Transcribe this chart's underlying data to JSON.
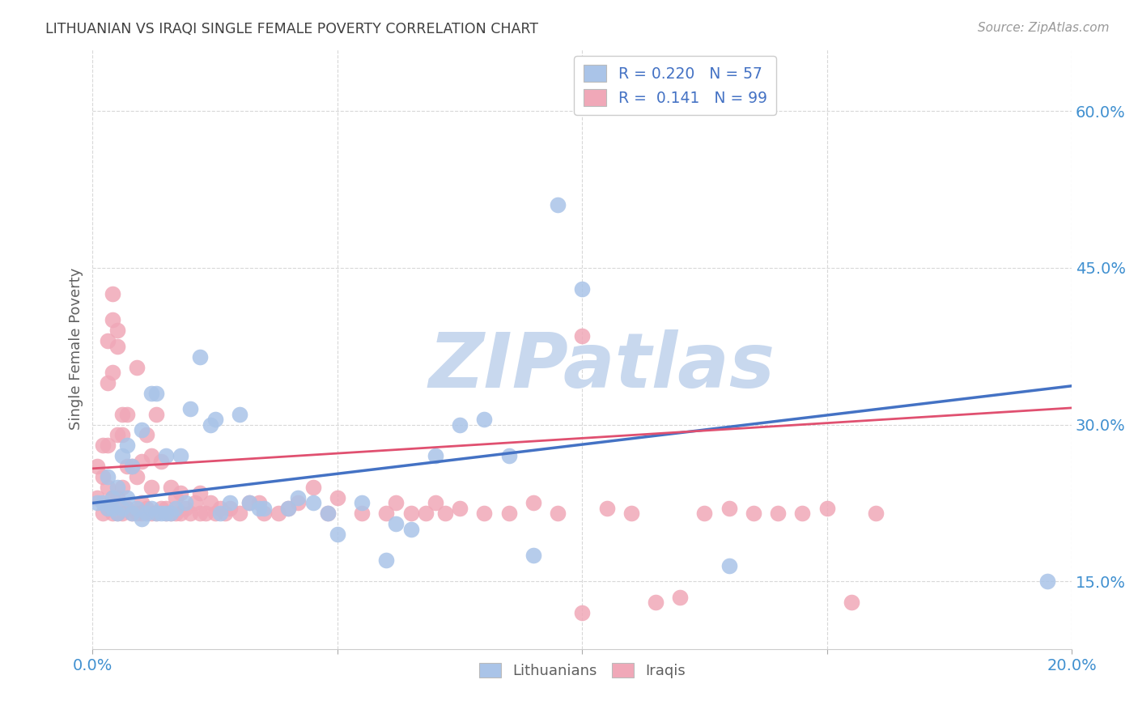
{
  "title": "LITHUANIAN VS IRAQI SINGLE FEMALE POVERTY CORRELATION CHART",
  "source": "Source: ZipAtlas.com",
  "ylabel": "Single Female Poverty",
  "watermark": "ZIPatlas",
  "legend_line1": "R = 0.220   N = 57",
  "legend_line2": "R =  0.141   N = 99",
  "xmin": 0.0,
  "xmax": 0.2,
  "ymin": 0.085,
  "ymax": 0.66,
  "yticks": [
    0.15,
    0.3,
    0.45,
    0.6
  ],
  "ytick_labels": [
    "15.0%",
    "30.0%",
    "45.0%",
    "60.0%"
  ],
  "xticks": [
    0.0,
    0.05,
    0.1,
    0.15,
    0.2
  ],
  "xtick_labels": [
    "0.0%",
    "",
    "",
    "",
    "20.0%"
  ],
  "blue_color": "#4472c4",
  "pink_color": "#e05070",
  "blue_scatter_color": "#aac4e8",
  "pink_scatter_color": "#f0a8b8",
  "background_color": "#ffffff",
  "grid_color": "#d8d8d8",
  "title_color": "#404040",
  "axis_label_color": "#606060",
  "tick_color": "#4090d0",
  "watermark_color": "#c8d8ee",
  "blue_pts": [
    [
      0.001,
      0.225
    ],
    [
      0.002,
      0.225
    ],
    [
      0.003,
      0.22
    ],
    [
      0.003,
      0.25
    ],
    [
      0.004,
      0.22
    ],
    [
      0.004,
      0.23
    ],
    [
      0.005,
      0.215
    ],
    [
      0.005,
      0.24
    ],
    [
      0.006,
      0.22
    ],
    [
      0.006,
      0.27
    ],
    [
      0.007,
      0.23
    ],
    [
      0.007,
      0.28
    ],
    [
      0.008,
      0.215
    ],
    [
      0.008,
      0.26
    ],
    [
      0.009,
      0.22
    ],
    [
      0.01,
      0.21
    ],
    [
      0.01,
      0.295
    ],
    [
      0.011,
      0.215
    ],
    [
      0.012,
      0.22
    ],
    [
      0.012,
      0.33
    ],
    [
      0.013,
      0.215
    ],
    [
      0.013,
      0.33
    ],
    [
      0.014,
      0.215
    ],
    [
      0.015,
      0.215
    ],
    [
      0.015,
      0.27
    ],
    [
      0.016,
      0.215
    ],
    [
      0.017,
      0.22
    ],
    [
      0.018,
      0.27
    ],
    [
      0.019,
      0.225
    ],
    [
      0.02,
      0.315
    ],
    [
      0.022,
      0.365
    ],
    [
      0.024,
      0.3
    ],
    [
      0.025,
      0.305
    ],
    [
      0.026,
      0.215
    ],
    [
      0.028,
      0.225
    ],
    [
      0.03,
      0.31
    ],
    [
      0.032,
      0.225
    ],
    [
      0.034,
      0.22
    ],
    [
      0.035,
      0.22
    ],
    [
      0.04,
      0.22
    ],
    [
      0.042,
      0.23
    ],
    [
      0.045,
      0.225
    ],
    [
      0.048,
      0.215
    ],
    [
      0.05,
      0.195
    ],
    [
      0.055,
      0.225
    ],
    [
      0.06,
      0.17
    ],
    [
      0.062,
      0.205
    ],
    [
      0.065,
      0.2
    ],
    [
      0.07,
      0.27
    ],
    [
      0.075,
      0.3
    ],
    [
      0.08,
      0.305
    ],
    [
      0.085,
      0.27
    ],
    [
      0.09,
      0.175
    ],
    [
      0.095,
      0.51
    ],
    [
      0.1,
      0.43
    ],
    [
      0.13,
      0.165
    ],
    [
      0.195,
      0.15
    ]
  ],
  "pink_pts": [
    [
      0.001,
      0.23
    ],
    [
      0.001,
      0.26
    ],
    [
      0.002,
      0.215
    ],
    [
      0.002,
      0.25
    ],
    [
      0.002,
      0.28
    ],
    [
      0.003,
      0.22
    ],
    [
      0.003,
      0.24
    ],
    [
      0.003,
      0.28
    ],
    [
      0.003,
      0.34
    ],
    [
      0.003,
      0.38
    ],
    [
      0.004,
      0.215
    ],
    [
      0.004,
      0.23
    ],
    [
      0.004,
      0.35
    ],
    [
      0.004,
      0.4
    ],
    [
      0.004,
      0.425
    ],
    [
      0.005,
      0.215
    ],
    [
      0.005,
      0.23
    ],
    [
      0.005,
      0.29
    ],
    [
      0.005,
      0.375
    ],
    [
      0.005,
      0.39
    ],
    [
      0.006,
      0.215
    ],
    [
      0.006,
      0.24
    ],
    [
      0.006,
      0.29
    ],
    [
      0.006,
      0.31
    ],
    [
      0.007,
      0.22
    ],
    [
      0.007,
      0.26
    ],
    [
      0.007,
      0.31
    ],
    [
      0.008,
      0.215
    ],
    [
      0.008,
      0.26
    ],
    [
      0.009,
      0.215
    ],
    [
      0.009,
      0.25
    ],
    [
      0.009,
      0.355
    ],
    [
      0.01,
      0.215
    ],
    [
      0.01,
      0.225
    ],
    [
      0.01,
      0.265
    ],
    [
      0.011,
      0.22
    ],
    [
      0.011,
      0.29
    ],
    [
      0.012,
      0.215
    ],
    [
      0.012,
      0.24
    ],
    [
      0.012,
      0.27
    ],
    [
      0.013,
      0.215
    ],
    [
      0.013,
      0.31
    ],
    [
      0.014,
      0.22
    ],
    [
      0.014,
      0.265
    ],
    [
      0.015,
      0.215
    ],
    [
      0.015,
      0.22
    ],
    [
      0.016,
      0.215
    ],
    [
      0.016,
      0.24
    ],
    [
      0.017,
      0.215
    ],
    [
      0.017,
      0.23
    ],
    [
      0.018,
      0.215
    ],
    [
      0.018,
      0.235
    ],
    [
      0.019,
      0.22
    ],
    [
      0.02,
      0.215
    ],
    [
      0.021,
      0.225
    ],
    [
      0.022,
      0.215
    ],
    [
      0.022,
      0.235
    ],
    [
      0.023,
      0.215
    ],
    [
      0.024,
      0.225
    ],
    [
      0.025,
      0.215
    ],
    [
      0.026,
      0.22
    ],
    [
      0.027,
      0.215
    ],
    [
      0.028,
      0.22
    ],
    [
      0.03,
      0.215
    ],
    [
      0.032,
      0.225
    ],
    [
      0.034,
      0.225
    ],
    [
      0.035,
      0.215
    ],
    [
      0.038,
      0.215
    ],
    [
      0.04,
      0.22
    ],
    [
      0.042,
      0.225
    ],
    [
      0.045,
      0.24
    ],
    [
      0.048,
      0.215
    ],
    [
      0.05,
      0.23
    ],
    [
      0.055,
      0.215
    ],
    [
      0.06,
      0.215
    ],
    [
      0.062,
      0.225
    ],
    [
      0.065,
      0.215
    ],
    [
      0.068,
      0.215
    ],
    [
      0.07,
      0.225
    ],
    [
      0.072,
      0.215
    ],
    [
      0.075,
      0.22
    ],
    [
      0.08,
      0.215
    ],
    [
      0.085,
      0.215
    ],
    [
      0.09,
      0.225
    ],
    [
      0.095,
      0.215
    ],
    [
      0.1,
      0.385
    ],
    [
      0.105,
      0.22
    ],
    [
      0.11,
      0.215
    ],
    [
      0.115,
      0.13
    ],
    [
      0.12,
      0.135
    ],
    [
      0.125,
      0.215
    ],
    [
      0.13,
      0.22
    ],
    [
      0.135,
      0.215
    ],
    [
      0.14,
      0.215
    ],
    [
      0.145,
      0.215
    ],
    [
      0.15,
      0.22
    ],
    [
      0.155,
      0.13
    ],
    [
      0.16,
      0.215
    ],
    [
      0.1,
      0.12
    ]
  ]
}
